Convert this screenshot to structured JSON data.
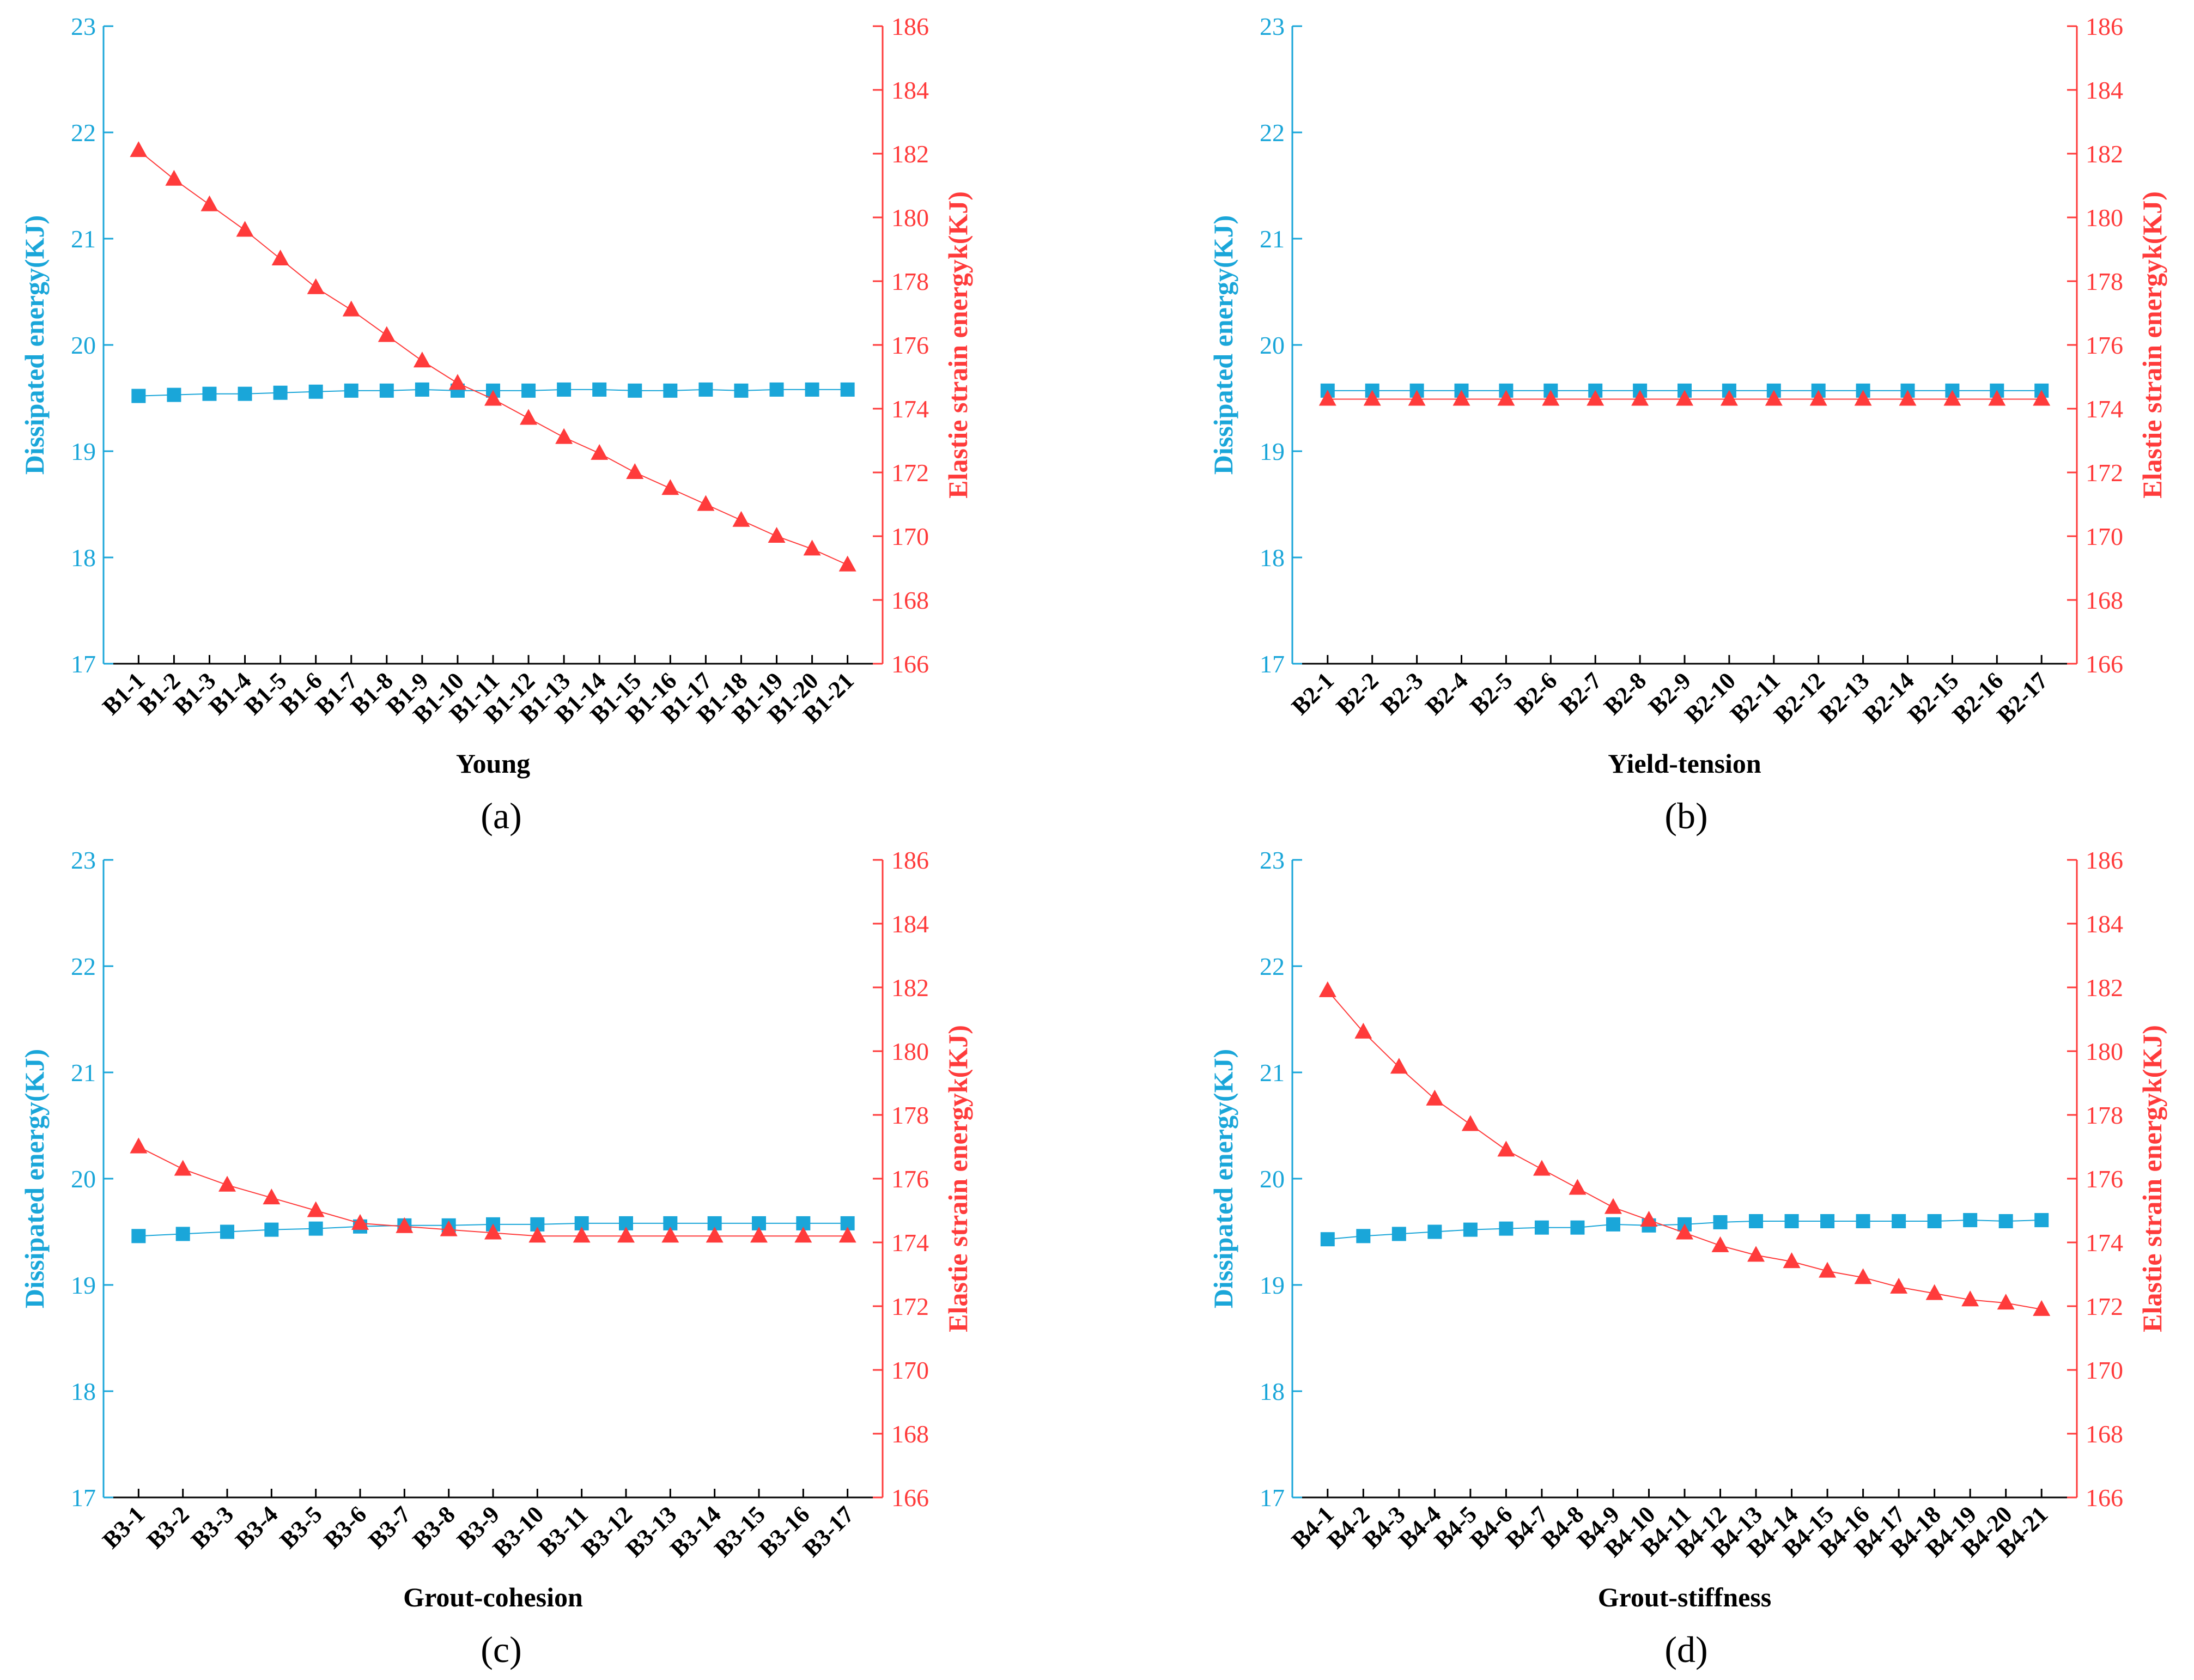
{
  "colors": {
    "dissipated": "#1aa6d9",
    "elastic": "#ff3b3b",
    "text": "#000000"
  },
  "chart_data": [
    {
      "type": "line",
      "panel_label": "(a)",
      "xlabel": "Young",
      "ylabel_left": "Dissipated energy(KJ)",
      "ylabel_right": "Elastie strain energyk(KJ)",
      "ylim_left": [
        17,
        23
      ],
      "ylim_right": [
        166,
        186
      ],
      "yticks_left": [
        "17",
        "18",
        "19",
        "20",
        "21",
        "22",
        "23"
      ],
      "yticks_right": [
        "166",
        "168",
        "170",
        "172",
        "174",
        "176",
        "178",
        "180",
        "182",
        "184",
        "186"
      ],
      "categories": [
        "B1-1",
        "B1-2",
        "B1-3",
        "B1-4",
        "B1-5",
        "B1-6",
        "B1-7",
        "B1-8",
        "B1-9",
        "B1-10",
        "B1-11",
        "B1-12",
        "B1-13",
        "B1-14",
        "B1-15",
        "B1-16",
        "B1-17",
        "B1-18",
        "B1-19",
        "B1-20",
        "B1-21"
      ],
      "series": [
        {
          "name": "Dissipated energy",
          "axis": "left",
          "marker": "square",
          "values": [
            19.52,
            19.53,
            19.54,
            19.54,
            19.55,
            19.56,
            19.57,
            19.57,
            19.58,
            19.57,
            19.57,
            19.57,
            19.58,
            19.58,
            19.57,
            19.57,
            19.58,
            19.57,
            19.58,
            19.58,
            19.58
          ]
        },
        {
          "name": "Elastic strain energy",
          "axis": "right",
          "marker": "triangle",
          "values": [
            182.1,
            181.2,
            180.4,
            179.6,
            178.7,
            177.8,
            177.1,
            176.3,
            175.5,
            174.8,
            174.3,
            173.7,
            173.1,
            172.6,
            172.0,
            171.5,
            171.0,
            170.5,
            170.0,
            169.6,
            169.1
          ]
        }
      ]
    },
    {
      "type": "line",
      "panel_label": "(b)",
      "xlabel": "Yield-tension",
      "ylabel_left": "Dissipated energy(KJ)",
      "ylabel_right": "Elastie strain energyk(KJ)",
      "ylim_left": [
        17,
        23
      ],
      "ylim_right": [
        166,
        186
      ],
      "yticks_left": [
        "17",
        "18",
        "19",
        "20",
        "21",
        "22",
        "23"
      ],
      "yticks_right": [
        "166",
        "168",
        "170",
        "172",
        "174",
        "176",
        "178",
        "180",
        "182",
        "184",
        "186"
      ],
      "categories": [
        "B2-1",
        "B2-2",
        "B2-3",
        "B2-4",
        "B2-5",
        "B2-6",
        "B2-7",
        "B2-8",
        "B2-9",
        "B2-10",
        "B2-11",
        "B2-12",
        "B2-13",
        "B2-14",
        "B2-15",
        "B2-16",
        "B2-17"
      ],
      "series": [
        {
          "name": "Dissipated energy",
          "axis": "left",
          "marker": "square",
          "values": [
            19.57,
            19.57,
            19.57,
            19.57,
            19.57,
            19.57,
            19.57,
            19.57,
            19.57,
            19.57,
            19.57,
            19.57,
            19.57,
            19.57,
            19.57,
            19.57,
            19.57
          ]
        },
        {
          "name": "Elastic strain energy",
          "axis": "right",
          "marker": "triangle",
          "values": [
            174.3,
            174.3,
            174.3,
            174.3,
            174.3,
            174.3,
            174.3,
            174.3,
            174.3,
            174.3,
            174.3,
            174.3,
            174.3,
            174.3,
            174.3,
            174.3,
            174.3
          ]
        }
      ]
    },
    {
      "type": "line",
      "panel_label": "(c)",
      "xlabel": "Grout-cohesion",
      "ylabel_left": "Dissipated energy(KJ)",
      "ylabel_right": "Elastie strain energyk(KJ)",
      "ylim_left": [
        17,
        23
      ],
      "ylim_right": [
        166,
        186
      ],
      "yticks_left": [
        "17",
        "18",
        "19",
        "20",
        "21",
        "22",
        "23"
      ],
      "yticks_right": [
        "166",
        "168",
        "170",
        "172",
        "174",
        "176",
        "178",
        "180",
        "182",
        "184",
        "186"
      ],
      "categories": [
        "B3-1",
        "B3-2",
        "B3-3",
        "B3-4",
        "B3-5",
        "B3-6",
        "B3-7",
        "B3-8",
        "B3-9",
        "B3-10",
        "B3-11",
        "B3-12",
        "B3-13",
        "B3-14",
        "B3-15",
        "B3-16",
        "B3-17"
      ],
      "series": [
        {
          "name": "Dissipated energy",
          "axis": "left",
          "marker": "square",
          "values": [
            19.46,
            19.48,
            19.5,
            19.52,
            19.53,
            19.55,
            19.56,
            19.56,
            19.57,
            19.57,
            19.58,
            19.58,
            19.58,
            19.58,
            19.58,
            19.58,
            19.58
          ]
        },
        {
          "name": "Elastic strain energy",
          "axis": "right",
          "marker": "triangle",
          "values": [
            177.0,
            176.3,
            175.8,
            175.4,
            175.0,
            174.6,
            174.5,
            174.4,
            174.3,
            174.2,
            174.2,
            174.2,
            174.2,
            174.2,
            174.2,
            174.2,
            174.2
          ]
        }
      ]
    },
    {
      "type": "line",
      "panel_label": "(d)",
      "xlabel": "Grout-stiffness",
      "ylabel_left": "Dissipated energy(KJ)",
      "ylabel_right": "Elastie strain energyk(KJ)",
      "ylim_left": [
        17,
        23
      ],
      "ylim_right": [
        166,
        186
      ],
      "yticks_left": [
        "17",
        "18",
        "19",
        "20",
        "21",
        "22",
        "23"
      ],
      "yticks_right": [
        "166",
        "168",
        "170",
        "172",
        "174",
        "176",
        "178",
        "180",
        "182",
        "184",
        "186"
      ],
      "categories": [
        "B4-1",
        "B4-2",
        "B4-3",
        "B4-4",
        "B4-5",
        "B4-6",
        "B4-7",
        "B4-8",
        "B4-9",
        "B4-10",
        "B4-11",
        "B4-12",
        "B4-13",
        "B4-14",
        "B4-15",
        "B4-16",
        "B4-17",
        "B4-18",
        "B4-19",
        "B4-20",
        "B4-21"
      ],
      "series": [
        {
          "name": "Dissipated energy",
          "axis": "left",
          "marker": "square",
          "values": [
            19.43,
            19.46,
            19.48,
            19.5,
            19.52,
            19.53,
            19.54,
            19.54,
            19.57,
            19.56,
            19.57,
            19.59,
            19.6,
            19.6,
            19.6,
            19.6,
            19.6,
            19.6,
            19.61,
            19.6,
            19.61
          ]
        },
        {
          "name": "Elastic strain energy",
          "axis": "right",
          "marker": "triangle",
          "values": [
            181.9,
            180.6,
            179.5,
            178.5,
            177.7,
            176.9,
            176.3,
            175.7,
            175.1,
            174.7,
            174.3,
            173.9,
            173.6,
            173.4,
            173.1,
            172.9,
            172.6,
            172.4,
            172.2,
            172.1,
            171.9
          ]
        }
      ]
    }
  ]
}
